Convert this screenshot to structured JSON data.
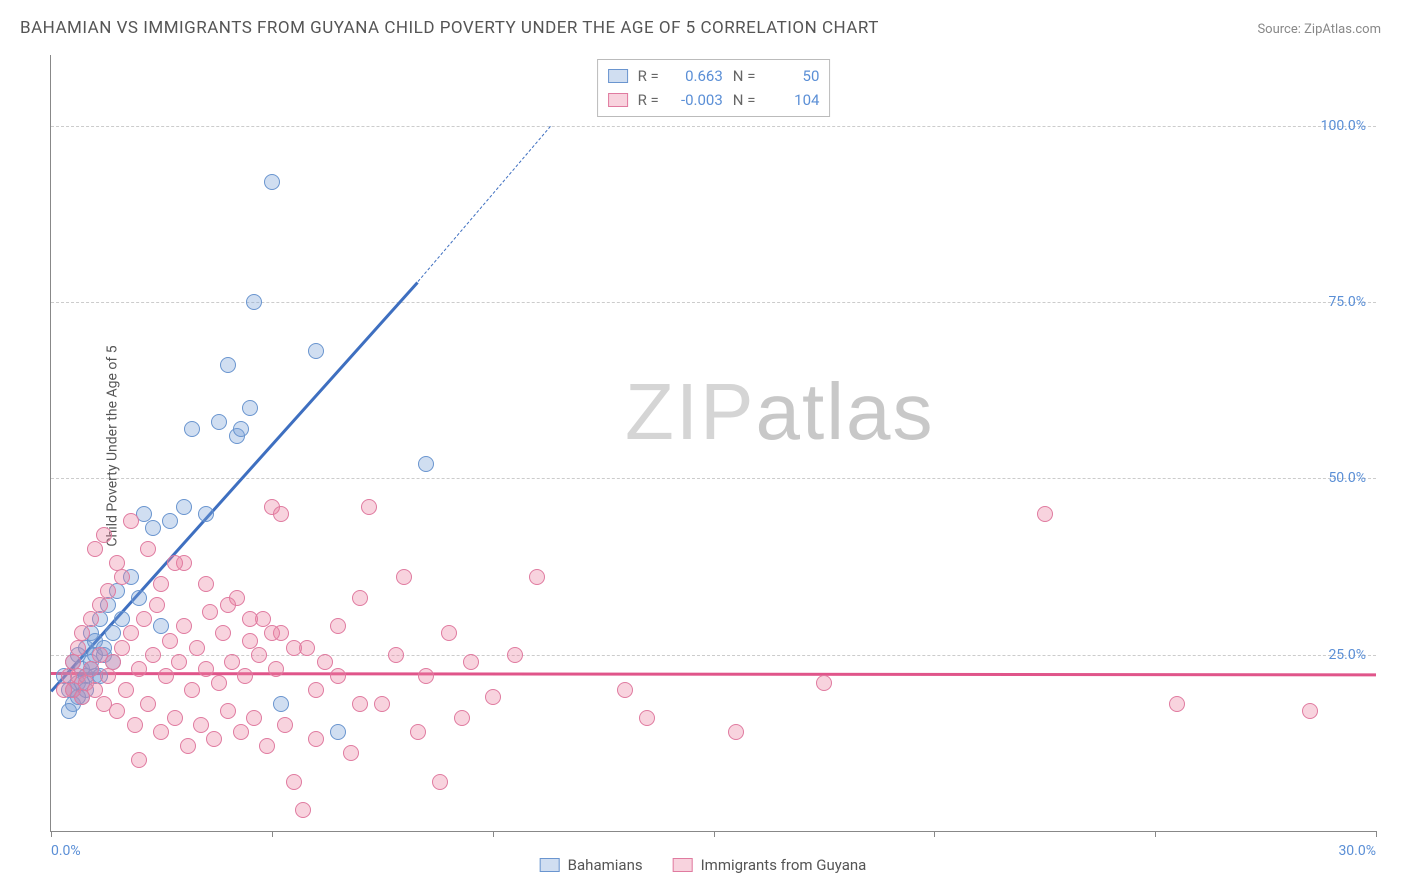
{
  "title": "BAHAMIAN VS IMMIGRANTS FROM GUYANA CHILD POVERTY UNDER THE AGE OF 5 CORRELATION CHART",
  "source_label": "Source:",
  "source_name": "ZipAtlas.com",
  "y_axis_label": "Child Poverty Under the Age of 5",
  "watermark": {
    "part1": "ZIP",
    "part2": "atlas"
  },
  "chart": {
    "type": "scatter",
    "xlim": [
      0,
      30
    ],
    "ylim": [
      0,
      110
    ],
    "ytick_positions": [
      25,
      50,
      75,
      100
    ],
    "ytick_labels": [
      "25.0%",
      "50.0%",
      "75.0%",
      "100.0%"
    ],
    "xtick_positions": [
      0,
      5,
      10,
      15,
      20,
      25,
      30
    ],
    "xtick_labels": [
      "0.0%",
      "",
      "",
      "",
      "",
      "",
      "30.0%"
    ],
    "background_color": "#ffffff",
    "grid_color": "#cccccc",
    "axis_color": "#888888",
    "marker_radius": 8
  },
  "series": [
    {
      "key": "bahamians",
      "label": "Bahamians",
      "fill": "rgba(120,160,215,0.35)",
      "stroke": "#6a95cf",
      "R_label": "R =",
      "R": "0.663",
      "N_label": "N =",
      "N": "50",
      "trend": {
        "x1": 0,
        "y1": 20,
        "x2": 8.3,
        "y2": 78,
        "dash_to_x": 11.3,
        "dash_to_y": 100,
        "color": "#3e6fc0"
      },
      "points": [
        [
          0.3,
          22
        ],
        [
          0.4,
          20
        ],
        [
          0.5,
          24
        ],
        [
          0.5,
          18
        ],
        [
          0.6,
          21
        ],
        [
          0.6,
          25
        ],
        [
          0.7,
          19
        ],
        [
          0.7,
          23
        ],
        [
          0.8,
          26
        ],
        [
          0.8,
          22
        ],
        [
          0.9,
          28
        ],
        [
          0.9,
          24
        ],
        [
          1.0,
          22
        ],
        [
          1.0,
          27
        ],
        [
          1.1,
          30
        ],
        [
          1.2,
          25
        ],
        [
          1.3,
          32
        ],
        [
          1.4,
          28
        ],
        [
          1.5,
          34
        ],
        [
          1.6,
          30
        ],
        [
          1.8,
          36
        ],
        [
          2.0,
          33
        ],
        [
          2.1,
          45
        ],
        [
          2.3,
          43
        ],
        [
          2.5,
          29
        ],
        [
          2.7,
          44
        ],
        [
          3.0,
          46
        ],
        [
          3.2,
          57
        ],
        [
          3.5,
          45
        ],
        [
          3.8,
          58
        ],
        [
          4.0,
          66
        ],
        [
          4.2,
          56
        ],
        [
          4.3,
          57
        ],
        [
          4.5,
          60
        ],
        [
          4.6,
          75
        ],
        [
          5.0,
          92
        ],
        [
          5.2,
          18
        ],
        [
          6.0,
          68
        ],
        [
          6.5,
          14
        ],
        [
          8.5,
          52
        ],
        [
          0.4,
          17
        ],
        [
          0.5,
          20
        ],
        [
          0.6,
          19
        ],
        [
          0.7,
          21
        ],
        [
          0.8,
          20
        ],
        [
          0.9,
          23
        ],
        [
          1.0,
          25
        ],
        [
          1.1,
          22
        ],
        [
          1.2,
          26
        ],
        [
          1.4,
          24
        ]
      ]
    },
    {
      "key": "guyana",
      "label": "Immigrants from Guyana",
      "fill": "rgba(235,130,160,0.35)",
      "stroke": "#e07ba0",
      "R_label": "R =",
      "R": "-0.003",
      "N_label": "N =",
      "N": "104",
      "trend": {
        "x1": 0,
        "y1": 22.5,
        "x2": 30,
        "y2": 22.3,
        "color": "#e0558a"
      },
      "points": [
        [
          0.5,
          20
        ],
        [
          0.6,
          22
        ],
        [
          0.7,
          19
        ],
        [
          0.8,
          21
        ],
        [
          0.9,
          23
        ],
        [
          1.0,
          20
        ],
        [
          1.1,
          25
        ],
        [
          1.2,
          18
        ],
        [
          1.3,
          22
        ],
        [
          1.4,
          24
        ],
        [
          1.5,
          17
        ],
        [
          1.6,
          26
        ],
        [
          1.7,
          20
        ],
        [
          1.8,
          28
        ],
        [
          1.9,
          15
        ],
        [
          2.0,
          23
        ],
        [
          2.1,
          30
        ],
        [
          2.2,
          18
        ],
        [
          2.3,
          25
        ],
        [
          2.4,
          32
        ],
        [
          2.5,
          14
        ],
        [
          2.6,
          22
        ],
        [
          2.7,
          27
        ],
        [
          2.8,
          16
        ],
        [
          2.9,
          24
        ],
        [
          3.0,
          29
        ],
        [
          3.1,
          12
        ],
        [
          3.2,
          20
        ],
        [
          3.3,
          26
        ],
        [
          3.4,
          15
        ],
        [
          3.5,
          23
        ],
        [
          3.6,
          31
        ],
        [
          3.7,
          13
        ],
        [
          3.8,
          21
        ],
        [
          3.9,
          28
        ],
        [
          4.0,
          17
        ],
        [
          4.1,
          24
        ],
        [
          4.2,
          33
        ],
        [
          4.3,
          14
        ],
        [
          4.4,
          22
        ],
        [
          4.5,
          27
        ],
        [
          4.6,
          16
        ],
        [
          4.7,
          25
        ],
        [
          4.8,
          30
        ],
        [
          4.9,
          12
        ],
        [
          5.0,
          46
        ],
        [
          5.1,
          23
        ],
        [
          5.2,
          28
        ],
        [
          5.3,
          15
        ],
        [
          5.5,
          7
        ],
        [
          5.7,
          3
        ],
        [
          5.8,
          26
        ],
        [
          6.0,
          13
        ],
        [
          6.2,
          24
        ],
        [
          6.5,
          29
        ],
        [
          6.8,
          11
        ],
        [
          7.0,
          33
        ],
        [
          7.2,
          46
        ],
        [
          7.5,
          18
        ],
        [
          7.8,
          25
        ],
        [
          8.0,
          36
        ],
        [
          8.3,
          14
        ],
        [
          8.5,
          22
        ],
        [
          8.8,
          7
        ],
        [
          9.0,
          28
        ],
        [
          9.3,
          16
        ],
        [
          9.5,
          24
        ],
        [
          10.0,
          19
        ],
        [
          10.5,
          25
        ],
        [
          11.0,
          36
        ],
        [
          13.0,
          20
        ],
        [
          13.5,
          16
        ],
        [
          15.5,
          14
        ],
        [
          17.5,
          21
        ],
        [
          22.5,
          45
        ],
        [
          25.5,
          18
        ],
        [
          28.5,
          17
        ],
        [
          1.0,
          40
        ],
        [
          1.2,
          42
        ],
        [
          1.5,
          38
        ],
        [
          5.2,
          45
        ],
        [
          2.0,
          10
        ],
        [
          2.5,
          35
        ],
        [
          3.0,
          38
        ],
        [
          1.8,
          44
        ],
        [
          0.9,
          30
        ],
        [
          0.7,
          28
        ],
        [
          0.6,
          26
        ],
        [
          0.5,
          24
        ],
        [
          0.4,
          22
        ],
        [
          0.3,
          20
        ],
        [
          1.1,
          32
        ],
        [
          1.3,
          34
        ],
        [
          1.6,
          36
        ],
        [
          2.2,
          40
        ],
        [
          2.8,
          38
        ],
        [
          3.5,
          35
        ],
        [
          4.0,
          32
        ],
        [
          4.5,
          30
        ],
        [
          5.0,
          28
        ],
        [
          5.5,
          26
        ],
        [
          6.0,
          20
        ],
        [
          6.5,
          22
        ],
        [
          7.0,
          18
        ]
      ]
    }
  ],
  "bottom_legend": [
    {
      "label": "Bahamians",
      "fill": "rgba(120,160,215,0.35)",
      "stroke": "#6a95cf"
    },
    {
      "label": "Immigrants from Guyana",
      "fill": "rgba(235,130,160,0.35)",
      "stroke": "#e07ba0"
    }
  ]
}
